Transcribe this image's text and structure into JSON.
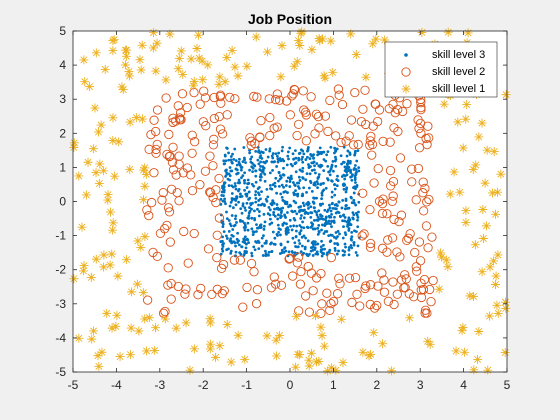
{
  "chart_data": {
    "type": "scatter",
    "title": "Job Position",
    "xlabel": "",
    "ylabel": "",
    "xlim": [
      -5,
      5
    ],
    "ylim": [
      -5,
      5
    ],
    "xticks": [
      "-5",
      "-4",
      "-3",
      "-2",
      "-1",
      "0",
      "1",
      "2",
      "3",
      "4",
      "5"
    ],
    "yticks": [
      "-5",
      "-4",
      "-3",
      "-2",
      "-1",
      "0",
      "1",
      "2",
      "3",
      "4",
      "5"
    ],
    "grid": false,
    "legend_position": "top-right",
    "series": [
      {
        "name": "skill level 3",
        "marker": "dot",
        "color": "#0072BD",
        "region": "uniform square",
        "x_range": [
          -1.6,
          1.6
        ],
        "y_range": [
          -1.6,
          1.6
        ],
        "count": 1000
      },
      {
        "name": "skill level 2",
        "marker": "circle",
        "color": "#D95319",
        "region": "ring between squares",
        "inner_half_width": 1.6,
        "outer_half_width": 3.3,
        "count": 320
      },
      {
        "name": "skill level 1",
        "marker": "asterisk",
        "color": "#EDB120",
        "region": "ring between squares",
        "inner_half_width": 3.3,
        "outer_half_width": 5.0,
        "count": 260
      }
    ]
  }
}
